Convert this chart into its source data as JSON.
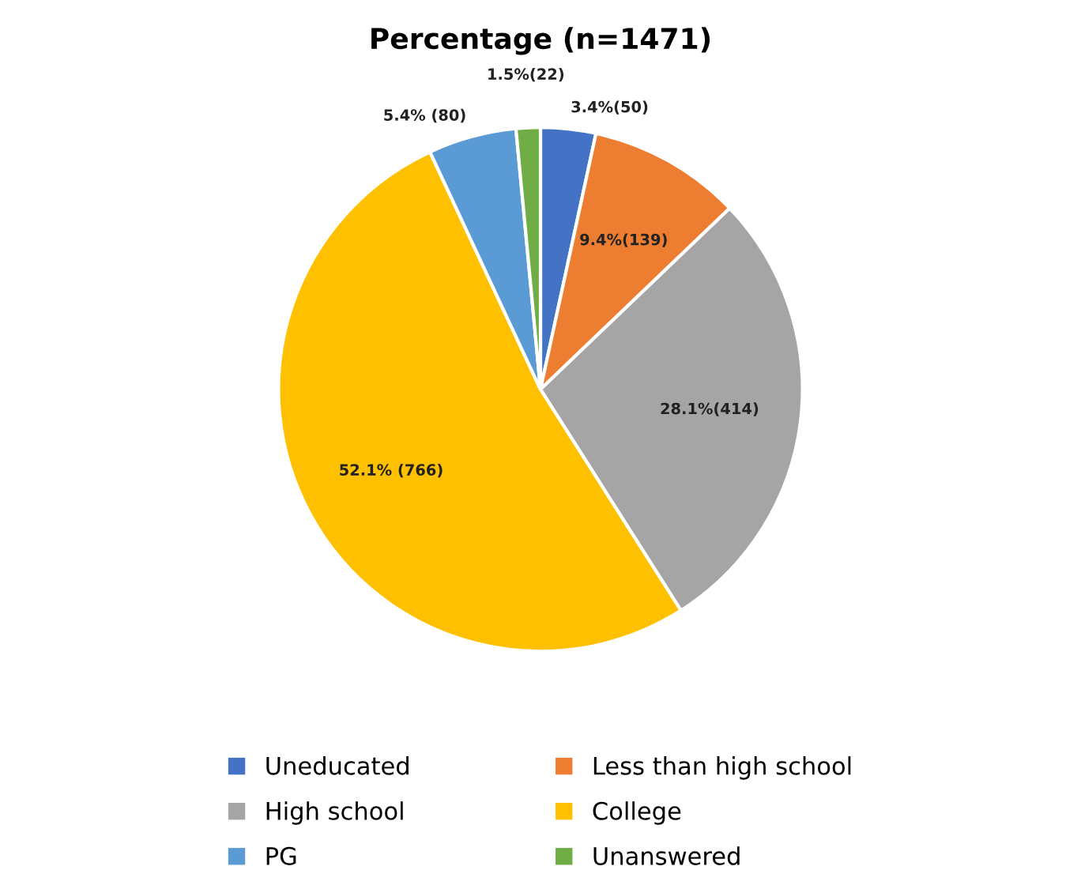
{
  "chart_data": {
    "type": "pie",
    "title": "Percentage (n=1471)",
    "categories": [
      "Uneducated",
      "Less than high school",
      "High school",
      "College",
      "PG",
      "Unanswered"
    ],
    "values": [
      50,
      139,
      414,
      766,
      80,
      22
    ],
    "colors": [
      "#4472c4",
      "#ed7d31",
      "#a5a5a5",
      "#ffc000",
      "#5b9bd5",
      "#70ad47"
    ],
    "value_labels": [
      "3.4%(50)",
      "9.4%(139)",
      "28.1%(414)",
      "52.1% (766)",
      "5.4% (80)",
      "1.5%(22)"
    ],
    "legend": "bottom"
  }
}
